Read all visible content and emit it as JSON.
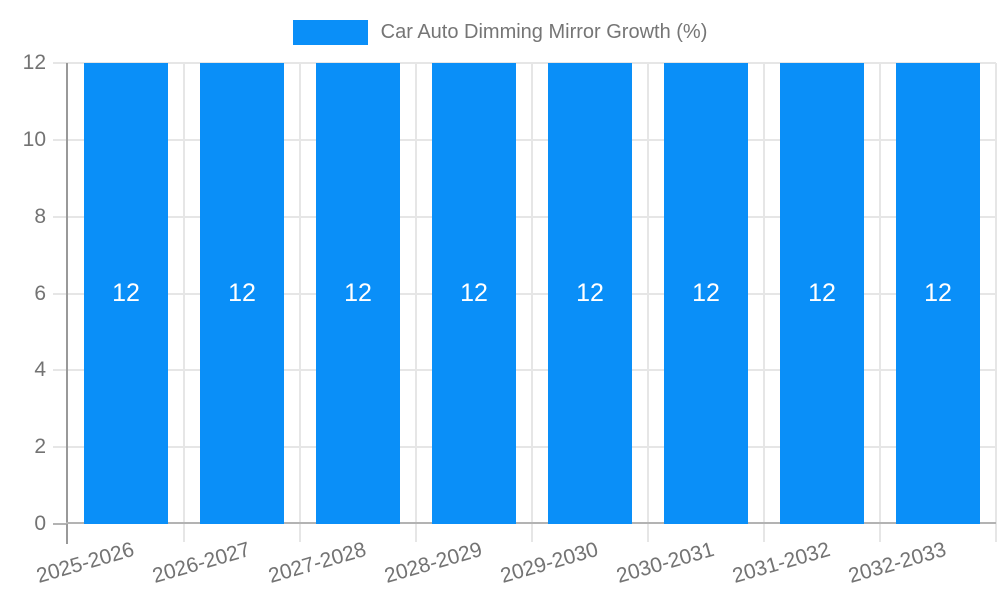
{
  "chart_data": {
    "type": "bar",
    "title": "Car Auto Dimming Mirror Growth (%)",
    "categories": [
      "2025-2026",
      "2026-2027",
      "2027-2028",
      "2028-2029",
      "2029-2030",
      "2030-2031",
      "2031-2032",
      "2032-2033"
    ],
    "values": [
      12,
      12,
      12,
      12,
      12,
      12,
      12,
      12
    ],
    "value_labels": [
      "12",
      "12",
      "12",
      "12",
      "12",
      "12",
      "12",
      "12"
    ],
    "xlabel": "",
    "ylabel": "",
    "ylim": [
      0,
      12
    ],
    "yticks": [
      0,
      2,
      4,
      6,
      8,
      10,
      12
    ],
    "grid": true,
    "legend_position": "top-center",
    "colors": {
      "bar": "#0a8ff8",
      "grid": "#e6e6e6",
      "axis_y": "#999999",
      "axis_x": "#b3b3b3",
      "tick_text": "#737373",
      "legend_text": "#757575",
      "value_text": "#ffffff",
      "background": "#ffffff"
    }
  }
}
